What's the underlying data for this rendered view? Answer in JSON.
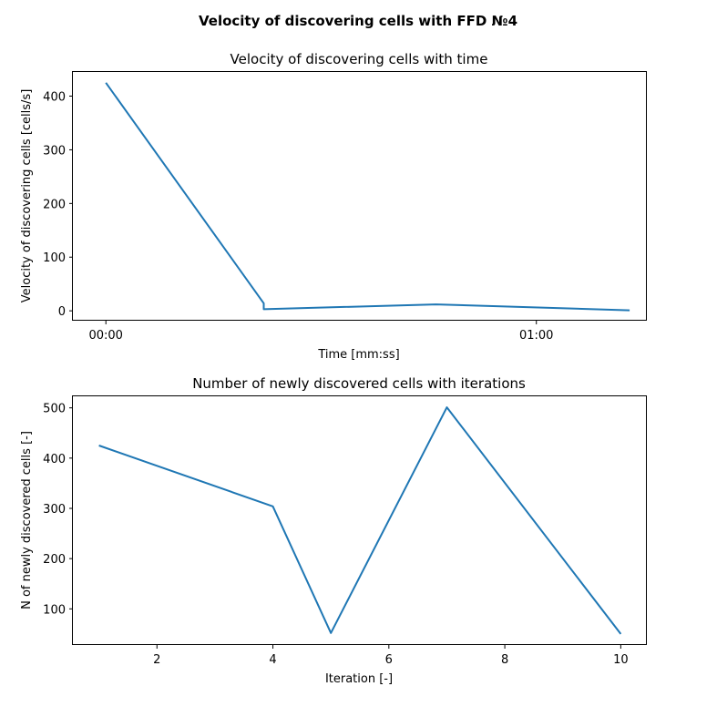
{
  "figure": {
    "suptitle": "Velocity of discovering cells with FFD №4"
  },
  "chart_data": [
    {
      "type": "line",
      "title": "Velocity of discovering cells with time",
      "xlabel": "Time [mm:ss]",
      "ylabel": "Velocity of discovering cells [cells/s]",
      "x_unit": "seconds",
      "xlim": [
        -4.6,
        75.4
      ],
      "ylim": [
        -18.4,
        445
      ],
      "xticks": [
        {
          "value": 0,
          "label": "00:00"
        },
        {
          "value": 60,
          "label": "01:00"
        }
      ],
      "yticks": [
        0,
        100,
        200,
        300,
        400
      ],
      "grid": false,
      "color": "#1f77b4",
      "x": [
        0,
        22.0,
        22.0,
        46.0,
        73.0
      ],
      "y": [
        425,
        14,
        3,
        12,
        1
      ]
    },
    {
      "type": "line",
      "title": "Number of newly discovered cells with iterations",
      "xlabel": "Iteration [-]",
      "ylabel": "N of newly discovered cells [-]",
      "xlim": [
        0.55,
        10.45
      ],
      "ylim": [
        28,
        523
      ],
      "xticks": [
        {
          "value": 2,
          "label": "2"
        },
        {
          "value": 4,
          "label": "4"
        },
        {
          "value": 6,
          "label": "6"
        },
        {
          "value": 8,
          "label": "8"
        },
        {
          "value": 10,
          "label": "10"
        }
      ],
      "yticks": [
        100,
        200,
        300,
        400,
        500
      ],
      "grid": false,
      "color": "#1f77b4",
      "x": [
        1,
        4,
        5,
        7,
        10
      ],
      "y": [
        425,
        304,
        52,
        501,
        50
      ]
    }
  ]
}
